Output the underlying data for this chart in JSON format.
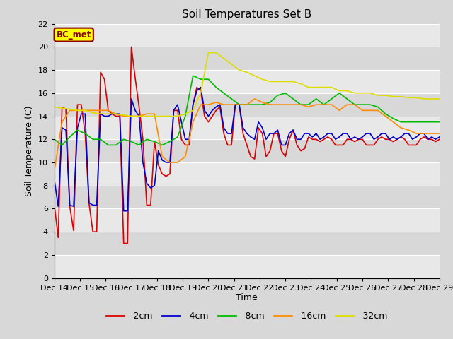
{
  "title": "Soil Temperatures Set B",
  "xlabel": "Time",
  "ylabel": "Soil Temperature (C)",
  "ylim": [
    0,
    22
  ],
  "fig_bg": "#d8d8d8",
  "plot_bg_light": "#e8e8e8",
  "plot_bg_dark": "#d8d8d8",
  "legend_label": "BC_met",
  "legend_box_color": "#ffff00",
  "legend_box_edge": "#8b0000",
  "x_labels": [
    "Dec 14",
    "Dec 15",
    "Dec 16",
    "Dec 17",
    "Dec 18",
    "Dec 19",
    "Dec 20",
    "Dec 21",
    "Dec 22",
    "Dec 23",
    "Dec 24",
    "Dec 25",
    "Dec 26",
    "Dec 27",
    "Dec 28",
    "Dec 29"
  ],
  "series": {
    "neg2cm": {
      "color": "#dd0000",
      "label": "-2cm",
      "x": [
        0.0,
        0.15,
        0.3,
        0.45,
        0.6,
        0.75,
        0.9,
        1.05,
        1.2,
        1.35,
        1.5,
        1.65,
        1.8,
        1.95,
        2.1,
        2.25,
        2.4,
        2.55,
        2.7,
        2.85,
        3.0,
        3.15,
        3.3,
        3.45,
        3.6,
        3.75,
        3.9,
        4.05,
        4.2,
        4.35,
        4.5,
        4.65,
        4.8,
        4.95,
        5.1,
        5.25,
        5.4,
        5.55,
        5.7,
        5.85,
        6.0,
        6.15,
        6.3,
        6.45,
        6.6,
        6.75,
        6.9,
        7.05,
        7.2,
        7.35,
        7.5,
        7.65,
        7.8,
        7.95,
        8.1,
        8.25,
        8.4,
        8.55,
        8.7,
        8.85,
        9.0,
        9.15,
        9.3,
        9.45,
        9.6,
        9.75,
        9.9,
        10.05,
        10.2,
        10.35,
        10.5,
        10.65,
        10.8,
        10.95,
        11.1,
        11.25,
        11.4,
        11.55,
        11.7,
        11.85,
        12.0,
        12.15,
        12.3,
        12.45,
        12.6,
        12.75,
        12.9,
        13.05,
        13.2,
        13.35,
        13.5,
        13.65,
        13.8,
        13.95,
        14.1,
        14.25,
        14.4,
        14.55,
        14.7,
        14.85,
        15.0
      ],
      "y": [
        6.3,
        3.5,
        14.8,
        14.6,
        6.2,
        4.1,
        15.0,
        15.0,
        12.5,
        6.5,
        4.0,
        4.0,
        17.8,
        17.2,
        14.5,
        14.2,
        14.0,
        14.0,
        3.0,
        3.0,
        20.0,
        17.3,
        14.8,
        12.0,
        6.3,
        6.3,
        11.8,
        9.8,
        9.0,
        8.8,
        9.0,
        14.5,
        14.5,
        12.0,
        11.5,
        11.5,
        15.0,
        16.5,
        16.2,
        14.0,
        13.5,
        14.0,
        14.5,
        14.8,
        12.5,
        11.5,
        11.5,
        15.0,
        15.0,
        12.5,
        11.5,
        10.5,
        10.3,
        13.0,
        12.5,
        10.5,
        11.0,
        12.5,
        12.5,
        11.0,
        10.5,
        12.0,
        12.8,
        11.5,
        11.0,
        11.2,
        12.2,
        12.0,
        12.0,
        11.8,
        12.0,
        12.2,
        12.0,
        11.5,
        11.5,
        11.5,
        12.0,
        12.0,
        11.8,
        12.0,
        12.0,
        11.5,
        11.5,
        11.5,
        12.0,
        12.2,
        12.0,
        12.0,
        11.8,
        12.0,
        12.2,
        12.0,
        11.5,
        11.5,
        11.5,
        12.0,
        12.2,
        12.0,
        12.0,
        11.8,
        12.0
      ]
    },
    "neg4cm": {
      "color": "#0000cc",
      "label": "-4cm",
      "x": [
        0.0,
        0.15,
        0.3,
        0.45,
        0.6,
        0.75,
        0.9,
        1.05,
        1.2,
        1.35,
        1.5,
        1.65,
        1.8,
        1.95,
        2.1,
        2.25,
        2.4,
        2.55,
        2.7,
        2.85,
        3.0,
        3.15,
        3.3,
        3.45,
        3.6,
        3.75,
        3.9,
        4.05,
        4.2,
        4.35,
        4.5,
        4.65,
        4.8,
        4.95,
        5.1,
        5.25,
        5.4,
        5.55,
        5.7,
        5.85,
        6.0,
        6.15,
        6.3,
        6.45,
        6.6,
        6.75,
        6.9,
        7.05,
        7.2,
        7.35,
        7.5,
        7.65,
        7.8,
        7.95,
        8.1,
        8.25,
        8.4,
        8.55,
        8.7,
        8.85,
        9.0,
        9.15,
        9.3,
        9.45,
        9.6,
        9.75,
        9.9,
        10.05,
        10.2,
        10.35,
        10.5,
        10.65,
        10.8,
        10.95,
        11.1,
        11.25,
        11.4,
        11.55,
        11.7,
        11.85,
        12.0,
        12.15,
        12.3,
        12.45,
        12.6,
        12.75,
        12.9,
        13.05,
        13.2,
        13.35,
        13.5,
        13.65,
        13.8,
        13.95,
        14.1,
        14.25,
        14.4,
        14.55,
        14.7,
        14.85,
        15.0
      ],
      "y": [
        8.5,
        6.2,
        13.0,
        12.8,
        6.3,
        6.2,
        13.0,
        14.2,
        14.2,
        6.5,
        6.3,
        6.3,
        14.2,
        14.0,
        14.0,
        14.2,
        14.2,
        14.2,
        5.8,
        5.8,
        15.5,
        14.5,
        14.0,
        10.0,
        8.2,
        7.8,
        8.0,
        11.0,
        10.2,
        10.0,
        10.0,
        14.5,
        15.0,
        13.5,
        12.0,
        12.0,
        15.0,
        16.2,
        16.5,
        14.5,
        14.0,
        14.5,
        14.8,
        15.0,
        13.0,
        12.5,
        12.5,
        15.0,
        15.0,
        13.0,
        12.5,
        12.2,
        12.0,
        13.5,
        13.0,
        12.0,
        12.5,
        12.5,
        12.8,
        11.5,
        11.5,
        12.5,
        12.8,
        12.0,
        12.0,
        12.5,
        12.5,
        12.2,
        12.5,
        12.0,
        12.2,
        12.5,
        12.5,
        12.0,
        12.2,
        12.5,
        12.5,
        12.0,
        12.2,
        12.0,
        12.2,
        12.5,
        12.5,
        12.0,
        12.2,
        12.5,
        12.5,
        12.0,
        12.2,
        12.0,
        12.2,
        12.5,
        12.5,
        12.0,
        12.2,
        12.5,
        12.5,
        12.0,
        12.2,
        12.0,
        12.2
      ]
    },
    "neg8cm": {
      "color": "#00bb00",
      "label": "-8cm",
      "x": [
        0.0,
        0.3,
        0.6,
        0.9,
        1.2,
        1.5,
        1.8,
        2.1,
        2.4,
        2.7,
        3.0,
        3.3,
        3.6,
        3.9,
        4.2,
        4.5,
        4.8,
        5.1,
        5.4,
        5.7,
        6.0,
        6.3,
        6.6,
        6.9,
        7.2,
        7.5,
        7.8,
        8.1,
        8.4,
        8.7,
        9.0,
        9.3,
        9.6,
        9.9,
        10.2,
        10.5,
        10.8,
        11.1,
        11.4,
        11.7,
        12.0,
        12.3,
        12.6,
        12.9,
        13.2,
        13.5,
        13.8,
        14.1,
        14.4,
        14.7,
        15.0
      ],
      "y": [
        12.0,
        11.5,
        12.2,
        12.8,
        12.5,
        12.0,
        12.0,
        11.5,
        11.5,
        12.0,
        11.8,
        11.5,
        12.0,
        11.8,
        11.5,
        11.8,
        12.2,
        14.0,
        17.5,
        17.2,
        17.2,
        16.5,
        16.0,
        15.5,
        15.0,
        15.0,
        15.0,
        15.0,
        15.2,
        15.8,
        16.0,
        15.5,
        15.0,
        15.0,
        15.5,
        15.0,
        15.5,
        16.0,
        15.5,
        15.0,
        15.0,
        15.0,
        14.8,
        14.2,
        13.8,
        13.5,
        13.5,
        13.5,
        13.5,
        13.5,
        13.5
      ]
    },
    "neg16cm": {
      "color": "#ff8c00",
      "label": "-16cm",
      "x": [
        0.0,
        0.3,
        0.6,
        0.9,
        1.2,
        1.5,
        1.8,
        2.1,
        2.4,
        2.7,
        3.0,
        3.3,
        3.6,
        3.9,
        4.2,
        4.5,
        4.8,
        5.1,
        5.4,
        5.7,
        6.0,
        6.3,
        6.6,
        6.9,
        7.2,
        7.5,
        7.8,
        8.1,
        8.4,
        8.7,
        9.0,
        9.3,
        9.6,
        9.9,
        10.2,
        10.5,
        10.8,
        11.1,
        11.4,
        11.7,
        12.0,
        12.3,
        12.6,
        12.9,
        13.2,
        13.5,
        13.8,
        14.1,
        14.4,
        14.7,
        15.0
      ],
      "y": [
        9.3,
        13.5,
        14.5,
        14.5,
        14.5,
        14.5,
        14.5,
        14.5,
        14.2,
        14.0,
        14.0,
        14.0,
        14.2,
        14.2,
        10.5,
        10.0,
        10.0,
        10.5,
        13.5,
        15.0,
        15.0,
        15.2,
        15.0,
        15.0,
        15.0,
        15.0,
        15.5,
        15.2,
        15.0,
        15.0,
        15.0,
        15.0,
        15.0,
        14.8,
        15.0,
        15.0,
        15.0,
        14.5,
        15.0,
        15.0,
        14.5,
        14.5,
        14.5,
        14.0,
        13.5,
        13.0,
        12.8,
        12.5,
        12.5,
        12.5,
        12.5
      ]
    },
    "neg32cm": {
      "color": "#dddd00",
      "label": "-32cm",
      "x": [
        0.0,
        0.3,
        0.6,
        0.9,
        1.2,
        1.5,
        1.8,
        2.1,
        2.4,
        2.7,
        3.0,
        3.3,
        3.6,
        3.9,
        4.2,
        4.5,
        4.8,
        5.1,
        5.4,
        5.7,
        6.0,
        6.3,
        6.6,
        6.9,
        7.2,
        7.5,
        7.8,
        8.1,
        8.4,
        8.7,
        9.0,
        9.3,
        9.6,
        9.9,
        10.2,
        10.5,
        10.8,
        11.1,
        11.4,
        11.7,
        12.0,
        12.3,
        12.6,
        12.9,
        13.2,
        13.5,
        13.8,
        14.1,
        14.4,
        14.7,
        15.0
      ],
      "y": [
        14.8,
        14.7,
        14.6,
        14.5,
        14.5,
        14.3,
        14.2,
        14.2,
        14.2,
        14.1,
        14.0,
        14.0,
        14.0,
        14.0,
        14.0,
        14.0,
        14.0,
        14.2,
        14.5,
        16.0,
        19.5,
        19.5,
        19.0,
        18.5,
        18.0,
        17.8,
        17.5,
        17.2,
        17.0,
        17.0,
        17.0,
        17.0,
        16.8,
        16.5,
        16.5,
        16.5,
        16.5,
        16.2,
        16.2,
        16.0,
        16.0,
        16.0,
        15.8,
        15.8,
        15.7,
        15.7,
        15.6,
        15.6,
        15.5,
        15.5,
        15.5
      ]
    }
  },
  "x_tick_positions": [
    0,
    1,
    2,
    3,
    4,
    5,
    6,
    7,
    8,
    9,
    10,
    11,
    12,
    13,
    14,
    15
  ],
  "band_colors": [
    "#e8e8e8",
    "#d8d8d8"
  ]
}
